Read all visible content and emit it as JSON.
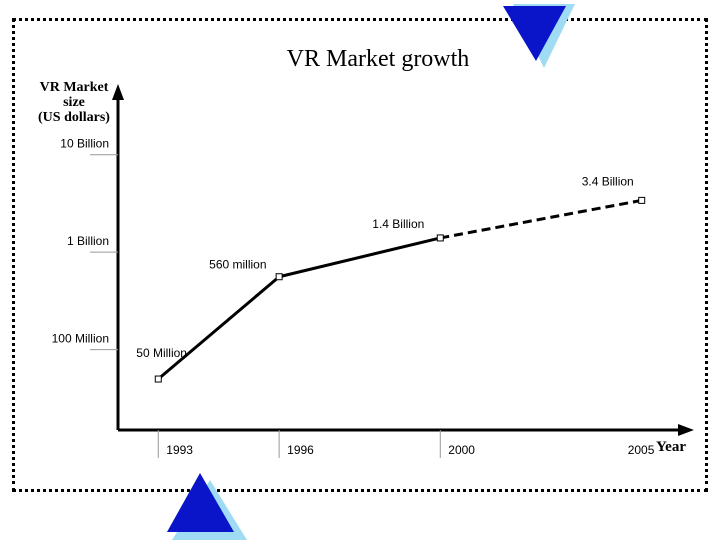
{
  "colors": {
    "line": "#000000",
    "axis": "#000000",
    "tick_guide": "#999999",
    "deco_blue": "#0a14c8",
    "deco_light_blue": "#9fdcf3"
  },
  "chart_data": {
    "type": "line",
    "title": "VR Market growth",
    "ylabel_lines": [
      "VR Market",
      "size",
      "(US dollars)"
    ],
    "xlabel": "Year",
    "y_scale": "log",
    "ylim": [
      15000000,
      40000000000
    ],
    "xlim": [
      1992,
      2006
    ],
    "y_ticks": [
      {
        "value": 10000000000,
        "label": "10 Billion"
      },
      {
        "value": 1000000000,
        "label": "1 Billion"
      },
      {
        "value": 100000000,
        "label": "100 Million"
      }
    ],
    "x_ticks": [
      {
        "value": 1993,
        "label": "1993"
      },
      {
        "value": 1996,
        "label": "1996"
      },
      {
        "value": 2000,
        "label": "2000"
      },
      {
        "value": 2005,
        "label": "2005"
      }
    ],
    "series": [
      {
        "points": [
          {
            "x": 1993,
            "y": 50000000,
            "label": "50 Million"
          },
          {
            "x": 1996,
            "y": 560000000,
            "label": "560 million"
          },
          {
            "x": 2000,
            "y": 1400000000,
            "label": "1.4 Billion"
          },
          {
            "x": 2005,
            "y": 3400000000,
            "label": "3.4 Billion"
          }
        ],
        "projected_from_index": 2
      }
    ],
    "grid": false,
    "legend": "none"
  }
}
